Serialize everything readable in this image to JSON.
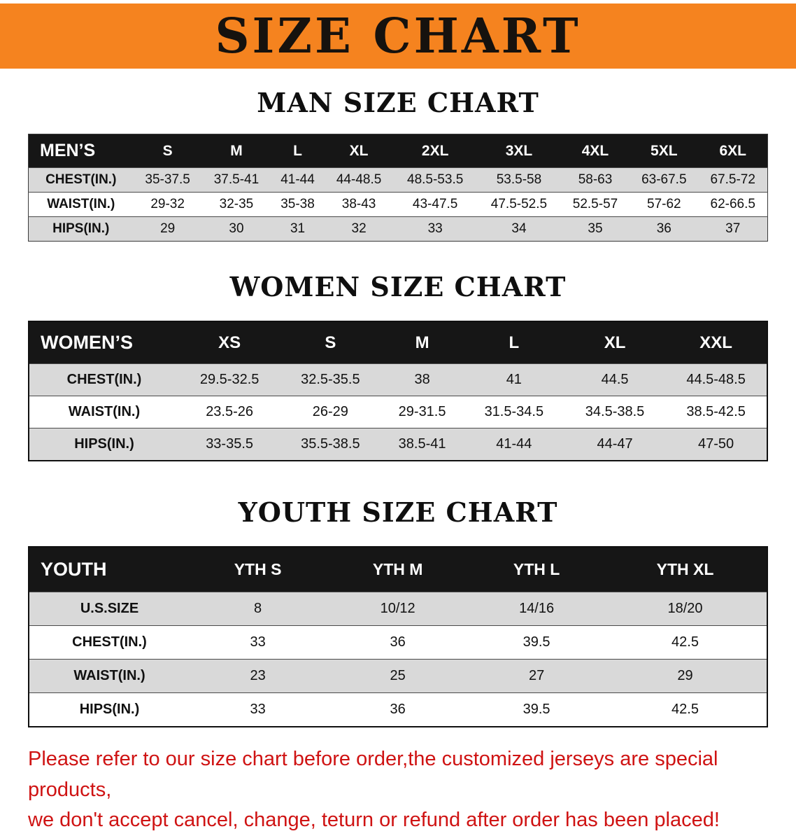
{
  "banner": {
    "title": "SIZE CHART"
  },
  "colors": {
    "banner_bg": "#f5831f",
    "table_header_bg": "#161616",
    "row_alt_bg": "#d9d9d9",
    "note_color": "#cf1313"
  },
  "sections": [
    {
      "id": "men",
      "heading": "MAN SIZE CHART",
      "table": {
        "header": [
          "MEN’S",
          "S",
          "M",
          "L",
          "XL",
          "2XL",
          "3XL",
          "4XL",
          "5XL",
          "6XL"
        ],
        "rows": [
          [
            "CHEST(IN.)",
            "35-37.5",
            "37.5-41",
            "41-44",
            "44-48.5",
            "48.5-53.5",
            "53.5-58",
            "58-63",
            "63-67.5",
            "67.5-72"
          ],
          [
            "WAIST(IN.)",
            "29-32",
            "32-35",
            "35-38",
            "38-43",
            "43-47.5",
            "47.5-52.5",
            "52.5-57",
            "57-62",
            "62-66.5"
          ],
          [
            "HIPS(IN.)",
            "29",
            "30",
            "31",
            "32",
            "33",
            "34",
            "35",
            "36",
            "37"
          ]
        ]
      }
    },
    {
      "id": "women",
      "heading": "WOMEN SIZE CHART",
      "table": {
        "header": [
          "WOMEN’S",
          "XS",
          "S",
          "M",
          "L",
          "XL",
          "XXL"
        ],
        "rows": [
          [
            "CHEST(IN.)",
            "29.5-32.5",
            "32.5-35.5",
            "38",
            "41",
            "44.5",
            "44.5-48.5"
          ],
          [
            "WAIST(IN.)",
            "23.5-26",
            "26-29",
            "29-31.5",
            "31.5-34.5",
            "34.5-38.5",
            "38.5-42.5"
          ],
          [
            "HIPS(IN.)",
            "33-35.5",
            "35.5-38.5",
            "38.5-41",
            "41-44",
            "44-47",
            "47-50"
          ]
        ]
      }
    },
    {
      "id": "youth",
      "heading": "YOUTH SIZE CHART",
      "table": {
        "header": [
          "YOUTH",
          "YTH S",
          "YTH M",
          "YTH L",
          "YTH XL"
        ],
        "rows": [
          [
            "U.S.SIZE",
            "8",
            "10/12",
            "14/16",
            "18/20"
          ],
          [
            "CHEST(IN.)",
            "33",
            "36",
            "39.5",
            "42.5"
          ],
          [
            "WAIST(IN.)",
            "23",
            "25",
            "27",
            "29"
          ],
          [
            "HIPS(IN.)",
            "33",
            "36",
            "39.5",
            "42.5"
          ]
        ]
      }
    }
  ],
  "footer_note": {
    "lines": [
      "Please refer to our size chart before order,the customized jerseys are special products,",
      "we don't accept cancel, change, teturn or refund after order has been placed!"
    ]
  }
}
